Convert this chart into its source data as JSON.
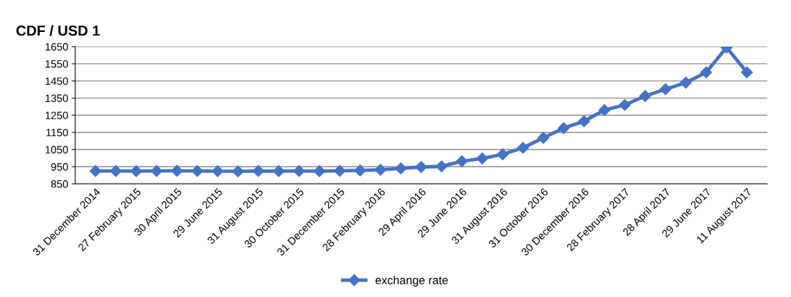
{
  "chart_data": {
    "type": "line",
    "title": "CDF / USD 1",
    "categories": [
      "31 December 2014",
      null,
      "27 February 2015",
      null,
      "30 April 2015",
      null,
      "29 June 2015",
      null,
      "31 August 2015",
      null,
      "30 October 2015",
      null,
      "31 December 2015",
      null,
      "28 February 2016",
      null,
      "29 April 2016",
      null,
      "29 June 2016",
      null,
      "31 August 2016",
      null,
      "31 October 2016",
      null,
      "30 December 2016",
      null,
      "28 February 2017",
      null,
      "28 April 2017",
      null,
      "29 June 2017",
      null,
      "11 August 2017"
    ],
    "series": [
      {
        "name": "exchange rate",
        "color": "#4472c4",
        "values": [
          925,
          925,
          924,
          925,
          926,
          925,
          924,
          923,
          925,
          924,
          925,
          924,
          926,
          928,
          932,
          940,
          948,
          952,
          982,
          998,
          1022,
          1060,
          1118,
          1175,
          1215,
          1280,
          1310,
          1362,
          1402,
          1440,
          1500,
          1645,
          1500
        ]
      }
    ],
    "ylim": [
      850,
      1650
    ],
    "yticks": [
      850,
      950,
      1050,
      1150,
      1250,
      1350,
      1450,
      1550,
      1650
    ],
    "grid": "y",
    "legend": "bottom",
    "marker": "diamond",
    "line_style": "solid"
  }
}
